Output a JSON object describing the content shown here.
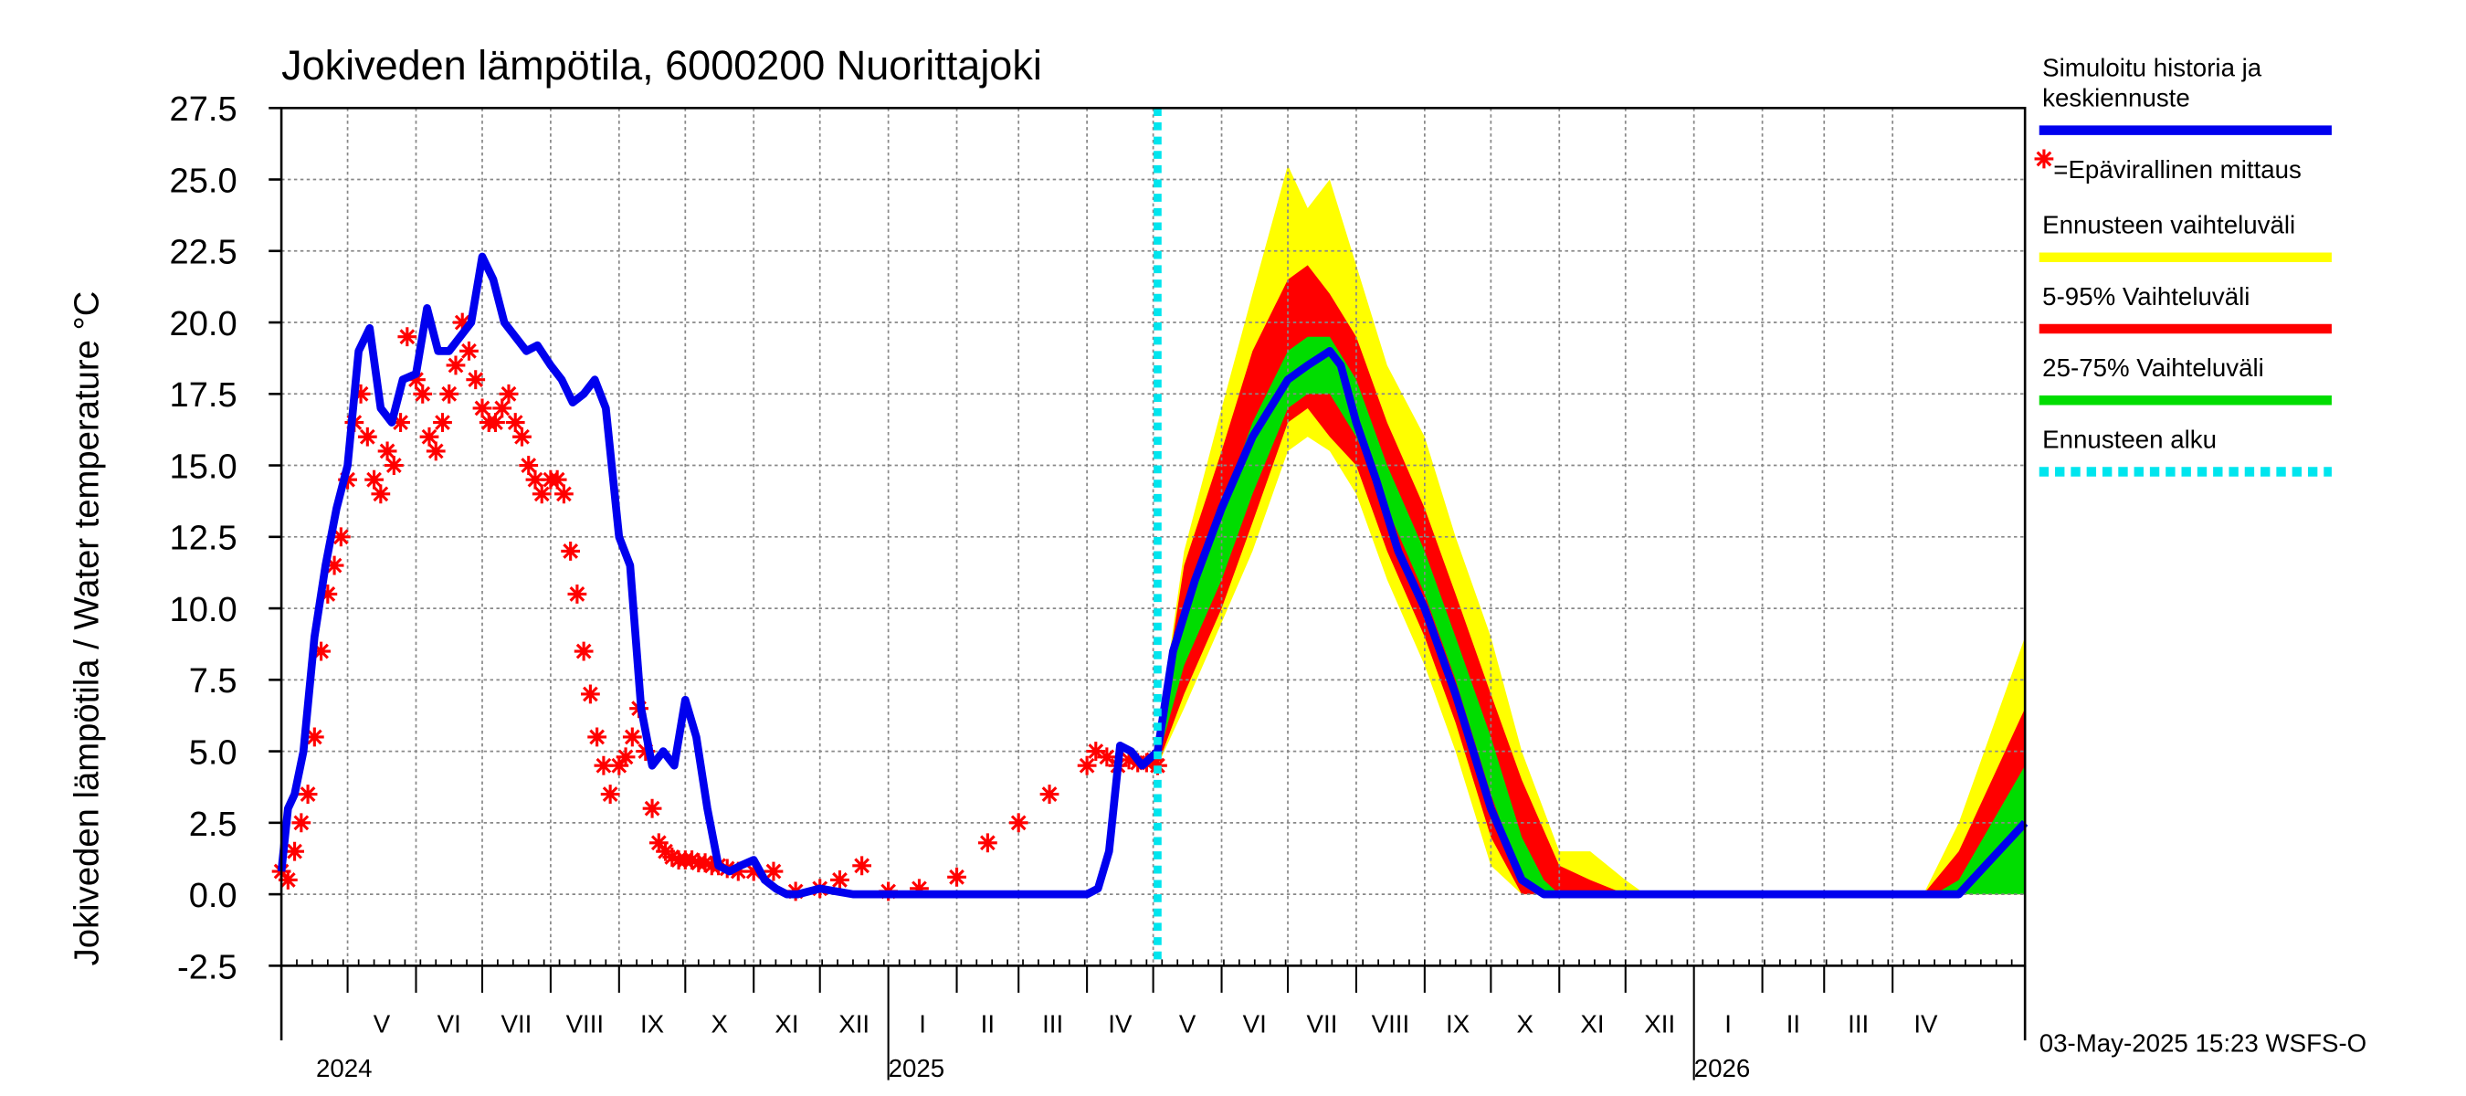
{
  "chart_data": {
    "type": "line",
    "title": "Jokiveden lämpötila, 6000200 Nuorittajoki",
    "ylabel": "Jokiveden lämpötila / Water temperature   °C",
    "ylim": [
      -2.5,
      27.5
    ],
    "yticks": [
      "27.5",
      "25.0",
      "22.5",
      "20.0",
      "17.5",
      "15.0",
      "12.5",
      "10.0",
      "7.5",
      "5.0",
      "2.5",
      "0.0",
      "-2.5"
    ],
    "ytick_values": [
      27.5,
      25.0,
      22.5,
      20.0,
      17.5,
      15.0,
      12.5,
      10.0,
      7.5,
      5.0,
      2.5,
      0.0,
      -2.5
    ],
    "x_start": "2024-04-01",
    "x_end": "2026-05-31",
    "months": [
      {
        "label": "V",
        "start": "2024-05-01"
      },
      {
        "label": "VI",
        "start": "2024-06-01"
      },
      {
        "label": "VII",
        "start": "2024-07-01"
      },
      {
        "label": "VIII",
        "start": "2024-08-01"
      },
      {
        "label": "IX",
        "start": "2024-09-01"
      },
      {
        "label": "X",
        "start": "2024-10-01"
      },
      {
        "label": "XI",
        "start": "2024-11-01"
      },
      {
        "label": "XII",
        "start": "2024-12-01"
      },
      {
        "label": "I",
        "start": "2025-01-01"
      },
      {
        "label": "II",
        "start": "2025-02-01"
      },
      {
        "label": "III",
        "start": "2025-03-01"
      },
      {
        "label": "IV",
        "start": "2025-04-01"
      },
      {
        "label": "V",
        "start": "2025-05-01"
      },
      {
        "label": "VI",
        "start": "2025-06-01"
      },
      {
        "label": "VII",
        "start": "2025-07-01"
      },
      {
        "label": "VIII",
        "start": "2025-08-01"
      },
      {
        "label": "IX",
        "start": "2025-09-01"
      },
      {
        "label": "X",
        "start": "2025-10-01"
      },
      {
        "label": "XI",
        "start": "2025-11-01"
      },
      {
        "label": "XII",
        "start": "2025-12-01"
      },
      {
        "label": "I",
        "start": "2026-01-01"
      },
      {
        "label": "II",
        "start": "2026-02-01"
      },
      {
        "label": "III",
        "start": "2026-03-01"
      },
      {
        "label": "IV",
        "start": "2026-04-01"
      }
    ],
    "years": [
      {
        "label": "2024",
        "date": "2024-05-01"
      },
      {
        "label": "2025",
        "date": "2025-01-01"
      },
      {
        "label": "2026",
        "date": "2026-01-01"
      }
    ],
    "forecast_start": "2025-05-03",
    "series": [
      {
        "name": "Simuloitu historia ja keskiennuste",
        "color": "#0000ee",
        "x": [
          "2024-04-01",
          "2024-04-04",
          "2024-04-07",
          "2024-04-11",
          "2024-04-16",
          "2024-04-21",
          "2024-04-26",
          "2024-05-01",
          "2024-05-06",
          "2024-05-11",
          "2024-05-16",
          "2024-05-21",
          "2024-05-26",
          "2024-06-01",
          "2024-06-06",
          "2024-06-11",
          "2024-06-16",
          "2024-06-21",
          "2024-06-26",
          "2024-07-01",
          "2024-07-06",
          "2024-07-11",
          "2024-07-16",
          "2024-07-21",
          "2024-07-26",
          "2024-08-01",
          "2024-08-06",
          "2024-08-11",
          "2024-08-16",
          "2024-08-21",
          "2024-08-26",
          "2024-09-01",
          "2024-09-06",
          "2024-09-11",
          "2024-09-16",
          "2024-09-21",
          "2024-09-26",
          "2024-10-01",
          "2024-10-06",
          "2024-10-11",
          "2024-10-16",
          "2024-10-21",
          "2024-10-26",
          "2024-11-01",
          "2024-11-06",
          "2024-11-11",
          "2024-11-16",
          "2024-11-21",
          "2024-12-01",
          "2024-12-16",
          "2025-01-01",
          "2025-02-01",
          "2025-03-01",
          "2025-04-01",
          "2025-04-06",
          "2025-04-11",
          "2025-04-16",
          "2025-04-21",
          "2025-04-26",
          "2025-05-03",
          "2025-05-10",
          "2025-05-20",
          "2025-06-01",
          "2025-06-15",
          "2025-07-01",
          "2025-07-10",
          "2025-07-20",
          "2025-07-25",
          "2025-08-01",
          "2025-08-10",
          "2025-08-20",
          "2025-09-01",
          "2025-09-15",
          "2025-10-01",
          "2025-10-15",
          "2025-10-25",
          "2025-11-01",
          "2025-12-01",
          "2026-01-01",
          "2026-02-01",
          "2026-03-01",
          "2026-04-01",
          "2026-04-20",
          "2026-05-01",
          "2026-05-31"
        ],
        "y": [
          0.8,
          3.0,
          3.5,
          5.0,
          9.0,
          11.5,
          13.5,
          15.0,
          19.0,
          19.8,
          17.0,
          16.5,
          18.0,
          18.2,
          20.5,
          19.0,
          19.0,
          19.5,
          20.0,
          22.3,
          21.5,
          20.0,
          19.5,
          19.0,
          19.2,
          18.5,
          18.0,
          17.2,
          17.5,
          18.0,
          17.0,
          12.5,
          11.5,
          6.5,
          4.5,
          5.0,
          4.5,
          6.8,
          5.5,
          3.0,
          1.0,
          0.8,
          1.0,
          1.2,
          0.5,
          0.2,
          0.0,
          0.0,
          0.2,
          0.0,
          0.0,
          0.0,
          0.0,
          0.0,
          0.2,
          1.5,
          5.2,
          5.0,
          4.5,
          5.0,
          8.5,
          11.0,
          13.5,
          16.0,
          18.0,
          18.5,
          19.0,
          18.5,
          16.5,
          14.5,
          12.0,
          10.0,
          7.0,
          3.0,
          0.5,
          0.0,
          0.0,
          0.0,
          0.0,
          0.0,
          0.0,
          0.0,
          0.0,
          0.0,
          2.5
        ]
      },
      {
        "name": "=Epävirallinen mittaus",
        "color": "#ff0000",
        "marker": "asterisk",
        "x": [
          "2024-04-01",
          "2024-04-04",
          "2024-04-07",
          "2024-04-10",
          "2024-04-13",
          "2024-04-16",
          "2024-04-19",
          "2024-04-22",
          "2024-04-25",
          "2024-04-28",
          "2024-05-01",
          "2024-05-04",
          "2024-05-07",
          "2024-05-10",
          "2024-05-13",
          "2024-05-16",
          "2024-05-19",
          "2024-05-22",
          "2024-05-25",
          "2024-05-28",
          "2024-06-01",
          "2024-06-04",
          "2024-06-07",
          "2024-06-10",
          "2024-06-13",
          "2024-06-16",
          "2024-06-19",
          "2024-06-22",
          "2024-06-25",
          "2024-06-28",
          "2024-07-01",
          "2024-07-04",
          "2024-07-07",
          "2024-07-10",
          "2024-07-13",
          "2024-07-16",
          "2024-07-19",
          "2024-07-22",
          "2024-07-25",
          "2024-07-28",
          "2024-08-01",
          "2024-08-04",
          "2024-08-07",
          "2024-08-10",
          "2024-08-13",
          "2024-08-16",
          "2024-08-19",
          "2024-08-22",
          "2024-08-25",
          "2024-08-28",
          "2024-09-01",
          "2024-09-04",
          "2024-09-07",
          "2024-09-10",
          "2024-09-13",
          "2024-09-16",
          "2024-09-19",
          "2024-09-22",
          "2024-09-25",
          "2024-09-28",
          "2024-10-01",
          "2024-10-04",
          "2024-10-07",
          "2024-10-10",
          "2024-10-13",
          "2024-10-16",
          "2024-10-20",
          "2024-10-25",
          "2024-11-01",
          "2024-11-10",
          "2024-11-20",
          "2024-12-01",
          "2024-12-10",
          "2024-12-20",
          "2025-01-01",
          "2025-01-15",
          "2025-02-01",
          "2025-02-15",
          "2025-03-01",
          "2025-03-15",
          "2025-04-01",
          "2025-04-05",
          "2025-04-10",
          "2025-04-15",
          "2025-04-20",
          "2025-04-24",
          "2025-04-28",
          "2025-05-01",
          "2025-05-03"
        ],
        "y": [
          0.8,
          0.5,
          1.5,
          2.5,
          3.5,
          5.5,
          8.5,
          10.5,
          11.5,
          12.5,
          14.5,
          16.5,
          17.5,
          16.0,
          14.5,
          14.0,
          15.5,
          15.0,
          16.5,
          19.5,
          18.0,
          17.5,
          16.0,
          15.5,
          16.5,
          17.5,
          18.5,
          20.0,
          19.0,
          18.0,
          17.0,
          16.5,
          16.5,
          17.0,
          17.5,
          16.5,
          16.0,
          15.0,
          14.5,
          14.0,
          14.5,
          14.5,
          14.0,
          12.0,
          10.5,
          8.5,
          7.0,
          5.5,
          4.5,
          3.5,
          4.5,
          4.8,
          5.5,
          6.5,
          5.0,
          3.0,
          1.8,
          1.5,
          1.3,
          1.2,
          1.2,
          1.2,
          1.1,
          1.1,
          1.0,
          1.0,
          0.9,
          0.8,
          0.8,
          0.8,
          0.1,
          0.2,
          0.5,
          1.0,
          0.1,
          0.2,
          0.6,
          1.8,
          2.5,
          3.5,
          4.5,
          5.0,
          4.8,
          4.5,
          4.7,
          4.6,
          4.6,
          4.7,
          4.5
        ]
      }
    ],
    "bands": [
      {
        "name": "Ennusteen vaihteluväli",
        "color": "#ffff00",
        "x": [
          "2025-05-03",
          "2025-05-15",
          "2025-06-01",
          "2025-06-15",
          "2025-07-01",
          "2025-07-10",
          "2025-07-20",
          "2025-08-01",
          "2025-08-15",
          "2025-09-01",
          "2025-09-15",
          "2025-10-01",
          "2025-10-15",
          "2025-11-01",
          "2025-11-15",
          "2025-12-01",
          "2025-12-10",
          "2026-04-15",
          "2026-05-01",
          "2026-05-31"
        ],
        "lo": [
          4.5,
          6.5,
          9.5,
          12.0,
          15.5,
          16.0,
          15.5,
          14.0,
          11.0,
          8.0,
          5.0,
          1.0,
          0.0,
          0.0,
          0.0,
          0.0,
          0.0,
          0.0,
          0.0,
          0.0
        ],
        "hi": [
          5.5,
          12.0,
          17.0,
          21.0,
          25.5,
          24.0,
          25.0,
          22.0,
          18.5,
          16.0,
          12.5,
          9.0,
          5.0,
          1.5,
          1.5,
          0.5,
          0.0,
          0.0,
          2.5,
          9.0
        ]
      },
      {
        "name": "5-95% Vaihteluväli",
        "color": "#ff0000",
        "x": [
          "2025-05-03",
          "2025-05-15",
          "2025-06-01",
          "2025-06-15",
          "2025-07-01",
          "2025-07-10",
          "2025-07-20",
          "2025-08-01",
          "2025-08-15",
          "2025-09-01",
          "2025-09-15",
          "2025-10-01",
          "2025-10-15",
          "2025-11-01",
          "2025-11-15",
          "2025-12-01",
          "2026-04-15",
          "2026-05-01",
          "2026-05-31"
        ],
        "lo": [
          4.5,
          7.0,
          10.0,
          13.0,
          16.5,
          17.0,
          16.0,
          15.0,
          12.0,
          9.0,
          6.0,
          2.0,
          0.0,
          0.0,
          0.0,
          0.0,
          0.0,
          0.0,
          0.0
        ],
        "hi": [
          5.5,
          11.5,
          15.5,
          19.0,
          21.5,
          22.0,
          21.0,
          19.5,
          16.5,
          13.5,
          10.5,
          7.0,
          4.0,
          1.0,
          0.5,
          0.0,
          0.0,
          1.5,
          6.5
        ]
      },
      {
        "name": "25-75% Vaihteluväli",
        "color": "#00dd00",
        "x": [
          "2025-05-03",
          "2025-05-15",
          "2025-06-01",
          "2025-06-15",
          "2025-07-01",
          "2025-07-10",
          "2025-07-20",
          "2025-08-01",
          "2025-08-15",
          "2025-09-01",
          "2025-09-15",
          "2025-10-01",
          "2025-10-15",
          "2025-10-25",
          "2025-11-01",
          "2026-04-20",
          "2026-05-01",
          "2026-05-31"
        ],
        "lo": [
          4.7,
          8.0,
          11.0,
          14.0,
          17.0,
          17.5,
          17.5,
          16.0,
          13.5,
          10.5,
          7.5,
          3.5,
          0.5,
          0.0,
          0.0,
          0.0,
          0.0,
          0.0
        ],
        "hi": [
          5.2,
          10.0,
          13.5,
          16.5,
          19.0,
          19.5,
          19.5,
          18.0,
          15.0,
          12.0,
          9.0,
          5.5,
          2.0,
          0.5,
          0.0,
          0.0,
          0.5,
          4.5
        ]
      }
    ],
    "legend": [
      {
        "label": "Simuloitu historia ja",
        "label2": "keskiennuste",
        "color": "#0000ee",
        "style": "line"
      },
      {
        "label": "=Epävirallinen mittaus",
        "color": "#ff0000",
        "style": "asterisk"
      },
      {
        "label": "Ennusteen vaihteluväli",
        "color": "#ffff00",
        "style": "line"
      },
      {
        "label": "5-95% Vaihteluväli",
        "color": "#ff0000",
        "style": "line"
      },
      {
        "label": "25-75% Vaihteluväli",
        "color": "#00dd00",
        "style": "line"
      },
      {
        "label": "Ennusteen alku",
        "color": "#00e5ee",
        "style": "dashed"
      }
    ],
    "legend_position": "right",
    "grid": true,
    "timestamp": "03-May-2025 15:23 WSFS-O"
  }
}
